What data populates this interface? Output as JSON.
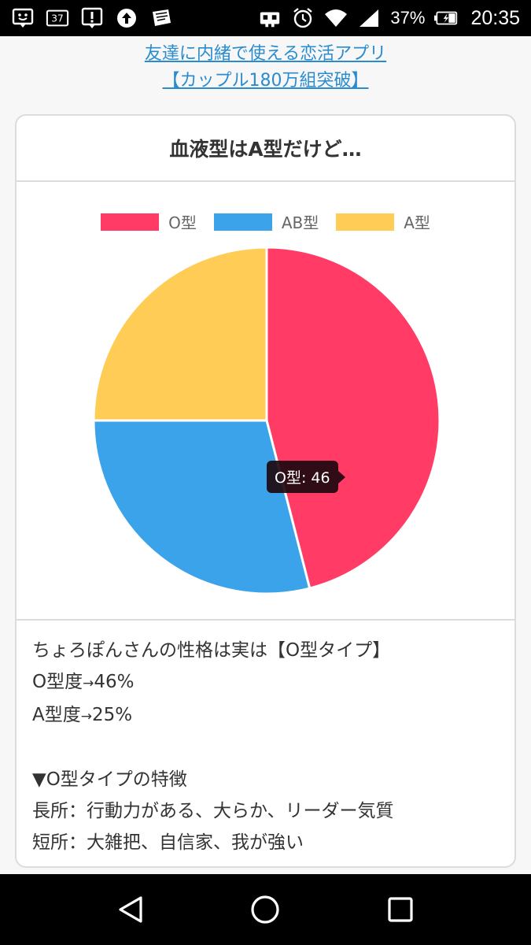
{
  "status_bar": {
    "notification_count": "37",
    "battery": "37%",
    "time": "20:35",
    "icons": [
      "face-icon",
      "mail-count-icon",
      "alert-icon",
      "upload-icon",
      "app-icon",
      "robot-icon",
      "alarm-icon",
      "wifi-icon",
      "signal-icon",
      "battery-icon"
    ]
  },
  "promo": {
    "line1": "友達に内緒で使える恋活アプリ",
    "line2": "【カップル180万組突破】"
  },
  "card": {
    "title": "血液型はA型だけど…"
  },
  "chart_data": {
    "type": "pie",
    "categories": [
      "O型",
      "AB型",
      "A型"
    ],
    "values": [
      46,
      29,
      25
    ],
    "colors": [
      "#ff3b66",
      "#3aa3ea",
      "#ffcd55"
    ],
    "legend_position": "top",
    "tooltip": "O型: 46"
  },
  "result": {
    "line1": "ちょろぽんさんの性格は実は【O型タイプ】",
    "line2_prefix": "O型度",
    "line2_arrow": "→",
    "line2_value": "46%",
    "line3_prefix": "A型度",
    "line3_arrow": "→",
    "line3_value": "25%",
    "line4": "▼O型タイプの特徴",
    "line5": "長所：行動力がある、大らか、リーダー気質",
    "line6": "短所：大雑把、自信家、我が強い"
  },
  "nav_bar": {
    "icons": [
      "back-icon",
      "home-icon",
      "recents-icon"
    ]
  }
}
